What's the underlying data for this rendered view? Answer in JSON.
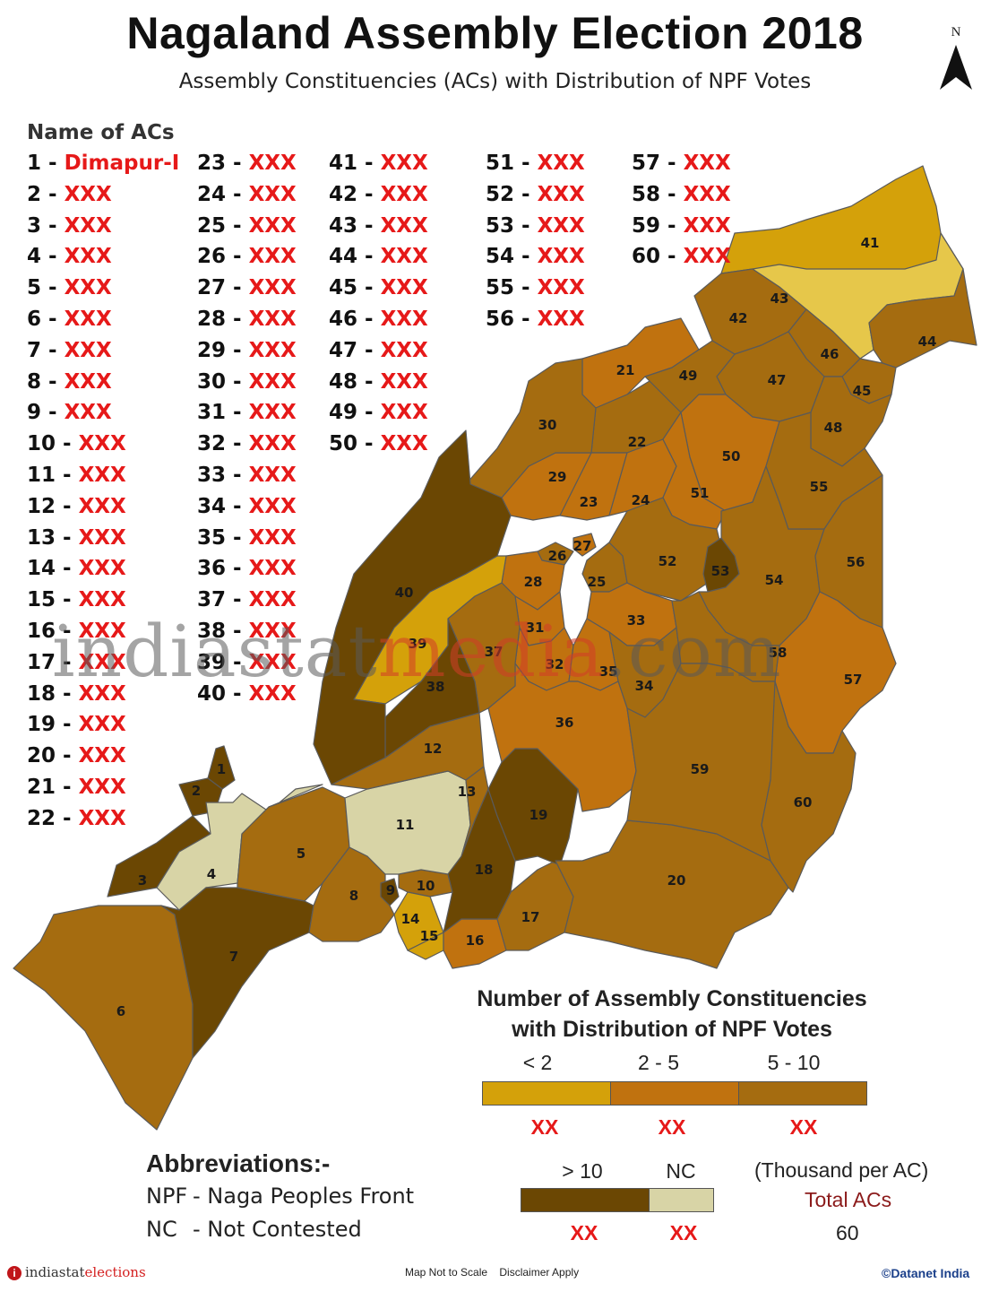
{
  "title": "Nagaland Assembly Election 2018",
  "subtitle": "Assembly Constituencies (ACs) with Distribution of NPF Votes",
  "north_label": "N",
  "ac_list": {
    "heading": "Name of ACs",
    "items": [
      {
        "num": "1 - ",
        "name": "Dimapur-I"
      },
      {
        "num": "2 - ",
        "name": "XXX"
      },
      {
        "num": "3 - ",
        "name": "XXX"
      },
      {
        "num": "4 - ",
        "name": "XXX"
      },
      {
        "num": "5 - ",
        "name": "XXX"
      },
      {
        "num": "6 - ",
        "name": "XXX"
      },
      {
        "num": "7 - ",
        "name": "XXX"
      },
      {
        "num": "8 - ",
        "name": "XXX"
      },
      {
        "num": "9 - ",
        "name": "XXX"
      },
      {
        "num": "10 - ",
        "name": "XXX"
      },
      {
        "num": "11 - ",
        "name": "XXX"
      },
      {
        "num": "12 - ",
        "name": "XXX"
      },
      {
        "num": "13 - ",
        "name": "XXX"
      },
      {
        "num": "14 - ",
        "name": "XXX"
      },
      {
        "num": "15 - ",
        "name": "XXX"
      },
      {
        "num": "16 - ",
        "name": "XXX"
      },
      {
        "num": "17 - ",
        "name": "XXX"
      },
      {
        "num": "18 - ",
        "name": "XXX"
      },
      {
        "num": "19 - ",
        "name": "XXX"
      },
      {
        "num": "20 - ",
        "name": "XXX"
      },
      {
        "num": "21 - ",
        "name": "XXX"
      },
      {
        "num": "22 - ",
        "name": "XXX"
      },
      {
        "num": "23 - ",
        "name": "XXX"
      },
      {
        "num": "24 - ",
        "name": "XXX"
      },
      {
        "num": "25 - ",
        "name": "XXX"
      },
      {
        "num": "26 - ",
        "name": "XXX"
      },
      {
        "num": "27 - ",
        "name": "XXX"
      },
      {
        "num": "28 - ",
        "name": "XXX"
      },
      {
        "num": "29 - ",
        "name": "XXX"
      },
      {
        "num": "30 - ",
        "name": "XXX"
      },
      {
        "num": "31 - ",
        "name": "XXX"
      },
      {
        "num": "32 - ",
        "name": "XXX"
      },
      {
        "num": "33 - ",
        "name": "XXX"
      },
      {
        "num": "34 - ",
        "name": "XXX"
      },
      {
        "num": "35 - ",
        "name": "XXX"
      },
      {
        "num": "36 - ",
        "name": "XXX"
      },
      {
        "num": "37 - ",
        "name": "XXX"
      },
      {
        "num": "38 - ",
        "name": "XXX"
      },
      {
        "num": "39 - ",
        "name": "XXX"
      },
      {
        "num": "40 - ",
        "name": "XXX"
      },
      {
        "num": "41 - ",
        "name": "XXX"
      },
      {
        "num": "42 - ",
        "name": "XXX"
      },
      {
        "num": "43 - ",
        "name": "XXX"
      },
      {
        "num": "44 - ",
        "name": "XXX"
      },
      {
        "num": "45 - ",
        "name": "XXX"
      },
      {
        "num": "46 - ",
        "name": "XXX"
      },
      {
        "num": "47 - ",
        "name": "XXX"
      },
      {
        "num": "48 - ",
        "name": "XXX"
      },
      {
        "num": "49 - ",
        "name": "XXX"
      },
      {
        "num": "50 - ",
        "name": "XXX"
      },
      {
        "num": "51 - ",
        "name": "XXX"
      },
      {
        "num": "52 - ",
        "name": "XXX"
      },
      {
        "num": "53 - ",
        "name": "XXX"
      },
      {
        "num": "54 - ",
        "name": "XXX"
      },
      {
        "num": "55 - ",
        "name": "XXX"
      },
      {
        "num": "56 - ",
        "name": "XXX"
      },
      {
        "num": "57 - ",
        "name": "XXX"
      },
      {
        "num": "58 - ",
        "name": "XXX"
      },
      {
        "num": "59 - ",
        "name": "XXX"
      },
      {
        "num": "60 - ",
        "name": "XXX"
      }
    ]
  },
  "colors": {
    "lt2": "#d4a10a",
    "c2_5": "#c0720f",
    "c5_10": "#a56c10",
    "gt10": "#6b4703",
    "nc": "#d8d4a6",
    "border": "#555555",
    "accent_red": "#e61919"
  },
  "constituencies": [
    {
      "label": "1",
      "category": "gt10"
    },
    {
      "label": "2",
      "category": "gt10"
    },
    {
      "label": "3",
      "category": "gt10"
    },
    {
      "label": "4",
      "category": "nc"
    },
    {
      "label": "5",
      "category": "c5_10"
    },
    {
      "label": "6",
      "category": "c5_10"
    },
    {
      "label": "7",
      "category": "gt10"
    },
    {
      "label": "8",
      "category": "c5_10"
    },
    {
      "label": "9",
      "category": "gt10"
    },
    {
      "label": "10",
      "category": "c5_10"
    },
    {
      "label": "11",
      "category": "nc"
    },
    {
      "label": "12",
      "category": "c5_10"
    },
    {
      "label": "13",
      "category": "c5_10"
    },
    {
      "label": "14",
      "category": "lt2"
    },
    {
      "label": "15",
      "category": "lt2"
    },
    {
      "label": "16",
      "category": "c2_5"
    },
    {
      "label": "17",
      "category": "c5_10"
    },
    {
      "label": "18",
      "category": "gt10"
    },
    {
      "label": "19",
      "category": "gt10"
    },
    {
      "label": "20",
      "category": "c5_10"
    },
    {
      "label": "21",
      "category": "c2_5"
    },
    {
      "label": "22",
      "category": "c5_10"
    },
    {
      "label": "23",
      "category": "c2_5"
    },
    {
      "label": "24",
      "category": "c2_5"
    },
    {
      "label": "25",
      "category": "c5_10"
    },
    {
      "label": "26",
      "category": "c5_10"
    },
    {
      "label": "27",
      "category": "c2_5"
    },
    {
      "label": "28",
      "category": "c2_5"
    },
    {
      "label": "29",
      "category": "c2_5"
    },
    {
      "label": "30",
      "category": "c5_10"
    },
    {
      "label": "31",
      "category": "c2_5"
    },
    {
      "label": "32",
      "category": "c2_5"
    },
    {
      "label": "33",
      "category": "c2_5"
    },
    {
      "label": "34",
      "category": "c5_10"
    },
    {
      "label": "35",
      "category": "c2_5"
    },
    {
      "label": "36",
      "category": "c2_5"
    },
    {
      "label": "37",
      "category": "c5_10"
    },
    {
      "label": "38",
      "category": "gt10"
    },
    {
      "label": "39",
      "category": "lt2"
    },
    {
      "label": "40",
      "category": "gt10"
    },
    {
      "label": "41",
      "category": "lt2"
    },
    {
      "label": "42",
      "category": "c5_10"
    },
    {
      "label": "43",
      "category": "nc_light"
    },
    {
      "label": "44",
      "category": "c5_10"
    },
    {
      "label": "45",
      "category": "c5_10"
    },
    {
      "label": "46",
      "category": "c5_10"
    },
    {
      "label": "47",
      "category": "c5_10"
    },
    {
      "label": "48",
      "category": "c5_10"
    },
    {
      "label": "49",
      "category": "c5_10"
    },
    {
      "label": "50",
      "category": "c2_5"
    },
    {
      "label": "51",
      "category": "c2_5"
    },
    {
      "label": "52",
      "category": "c5_10"
    },
    {
      "label": "53",
      "category": "gt10"
    },
    {
      "label": "54",
      "category": "c5_10"
    },
    {
      "label": "55",
      "category": "c5_10"
    },
    {
      "label": "56",
      "category": "c5_10"
    },
    {
      "label": "57",
      "category": "c2_5"
    },
    {
      "label": "58",
      "category": "c5_10"
    },
    {
      "label": "59",
      "category": "c5_10"
    },
    {
      "label": "60",
      "category": "c5_10"
    }
  ],
  "watermark": {
    "part1": "indiastat",
    "part2": "media",
    "part3": ".com"
  },
  "legend": {
    "title_line1": "Number of Assembly Constituencies",
    "title_line2": "with Distribution of NPF Votes",
    "classes": [
      {
        "label": "< 2",
        "count": "XX",
        "color": "#d4a10a"
      },
      {
        "label": "2 - 5",
        "count": "XX",
        "color": "#c0720f"
      },
      {
        "label": "5 - 10",
        "count": "XX",
        "color": "#a56c10"
      },
      {
        "label": "> 10",
        "count": "XX",
        "color": "#6b4703"
      },
      {
        "label": "NC",
        "count": "XX",
        "color": "#d8d4a6"
      }
    ],
    "unit": "(Thousand per AC)",
    "total_label": "Total ACs",
    "total_value": "60"
  },
  "abbreviations": {
    "title": "Abbreviations:-",
    "items": [
      {
        "key": "NPF",
        "value": "- Naga Peoples Front"
      },
      {
        "key": "NC",
        "value": "- Not Contested"
      }
    ]
  },
  "footer": {
    "brand_part1": "indiastat",
    "brand_part2": "elections",
    "brand_icon": "i",
    "center": "Map Not to Scale    Disclaimer Apply",
    "copyright": "©Datanet India"
  }
}
